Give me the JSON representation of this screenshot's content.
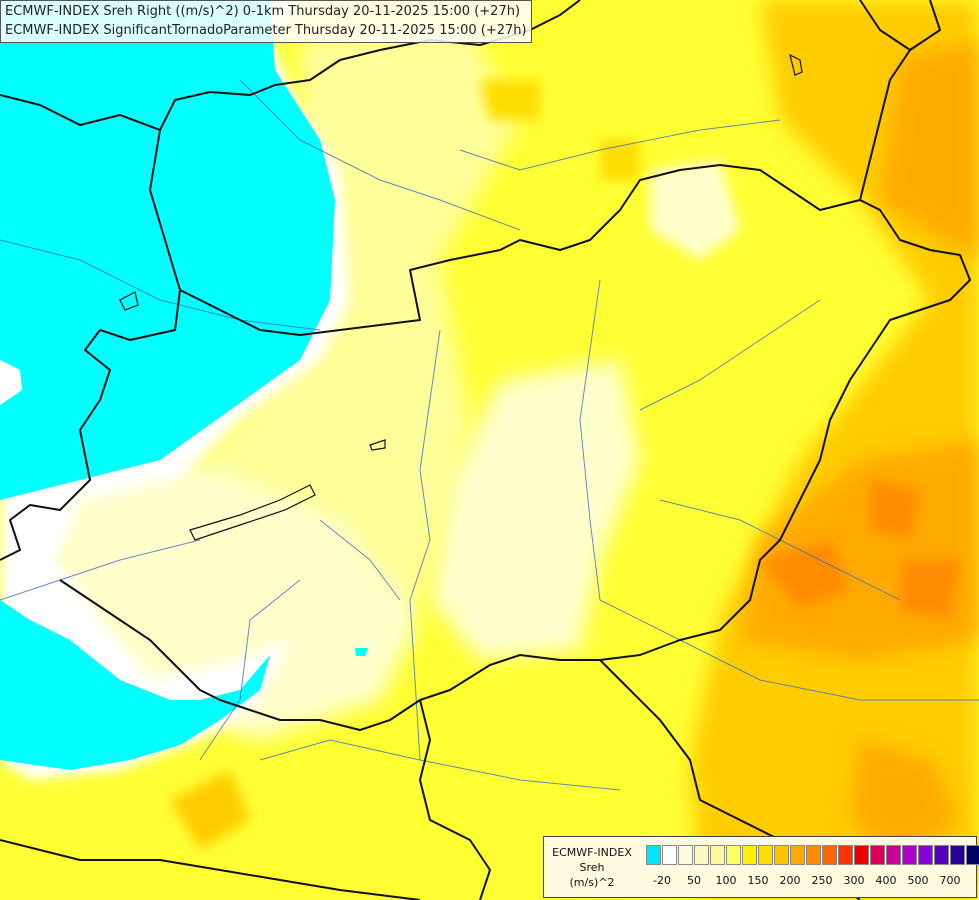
{
  "header": {
    "line1": "ECMWF-INDEX Sreh Right ((m/s)^2) 0-1km Thursday 20-11-2025 15:00 (+27h)",
    "line2": "ECMWF-INDEX SignificantTornadoParameter Thursday 20-11-2025 15:00 (+27h)"
  },
  "legend": {
    "title": "ECMWF-INDEX",
    "subtitle": "Sreh",
    "unit": "(m/s)^2",
    "colors": [
      "#00e5ff",
      "#ffffff",
      "#fffde0",
      "#fffbc0",
      "#fff799",
      "#ffff66",
      "#fff200",
      "#ffe000",
      "#ffc400",
      "#ffa800",
      "#ff8c00",
      "#ff6600",
      "#ff3300",
      "#ee0000",
      "#dd0055",
      "#cc0099",
      "#b000cc",
      "#8800dd",
      "#5500bb",
      "#2a0099",
      "#000066"
    ],
    "ticks": [
      "-20",
      "50",
      "100",
      "150",
      "200",
      "250",
      "300",
      "400",
      "500",
      "700"
    ]
  }
}
